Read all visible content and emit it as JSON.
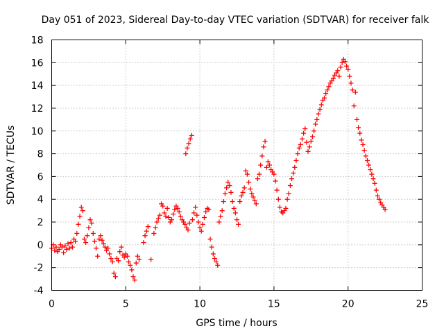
{
  "chart_data": {
    "type": "scatter",
    "title": "Day 051 of 2023, Sidereal Day-to-day VTEC variation (SDTVAR) for receiver falk",
    "xlabel": "GPS time / hours",
    "ylabel": "SDTVAR / TECUs",
    "xlim": [
      0,
      25
    ],
    "ylim": [
      -4,
      18
    ],
    "xticks": [
      0,
      5,
      10,
      15,
      20,
      25
    ],
    "yticks": [
      -4,
      -2,
      0,
      2,
      4,
      6,
      8,
      10,
      12,
      14,
      16,
      18
    ],
    "grid": true,
    "marker": "+",
    "color": "#ff0000",
    "series": [
      {
        "name": "SDTVAR",
        "points": [
          [
            0.0,
            -0.3
          ],
          [
            0.1,
            0.0
          ],
          [
            0.2,
            -0.5
          ],
          [
            0.3,
            -0.2
          ],
          [
            0.4,
            -0.6
          ],
          [
            0.5,
            -0.4
          ],
          [
            0.6,
            0.0
          ],
          [
            0.7,
            -0.2
          ],
          [
            0.8,
            -0.7
          ],
          [
            0.9,
            -0.1
          ],
          [
            1.0,
            -0.4
          ],
          [
            1.1,
            0.1
          ],
          [
            1.2,
            -0.3
          ],
          [
            1.3,
            0.2
          ],
          [
            1.4,
            -0.2
          ],
          [
            1.5,
            0.5
          ],
          [
            1.6,
            0.3
          ],
          [
            1.7,
            1.0
          ],
          [
            1.8,
            1.8
          ],
          [
            1.9,
            2.5
          ],
          [
            2.0,
            3.3
          ],
          [
            2.1,
            3.0
          ],
          [
            2.2,
            0.5
          ],
          [
            2.3,
            0.2
          ],
          [
            2.4,
            0.8
          ],
          [
            2.5,
            1.5
          ],
          [
            2.6,
            2.2
          ],
          [
            2.7,
            1.9
          ],
          [
            2.8,
            1.0
          ],
          [
            2.9,
            0.3
          ],
          [
            3.0,
            -0.3
          ],
          [
            3.1,
            -1.0
          ],
          [
            3.2,
            0.5
          ],
          [
            3.3,
            0.8
          ],
          [
            3.4,
            0.4
          ],
          [
            3.5,
            0.1
          ],
          [
            3.6,
            -0.2
          ],
          [
            3.7,
            -0.5
          ],
          [
            3.8,
            -0.3
          ],
          [
            3.9,
            -0.8
          ],
          [
            4.0,
            -1.2
          ],
          [
            4.1,
            -1.5
          ],
          [
            4.2,
            -2.5
          ],
          [
            4.3,
            -2.8
          ],
          [
            4.4,
            -1.2
          ],
          [
            4.5,
            -1.4
          ],
          [
            4.6,
            -0.6
          ],
          [
            4.7,
            -0.2
          ],
          [
            4.8,
            -0.9
          ],
          [
            4.9,
            -1.1
          ],
          [
            5.0,
            -0.8
          ],
          [
            5.1,
            -1.0
          ],
          [
            5.2,
            -1.5
          ],
          [
            5.3,
            -1.8
          ],
          [
            5.4,
            -2.2
          ],
          [
            5.5,
            -2.8
          ],
          [
            5.6,
            -3.1
          ],
          [
            5.7,
            -1.6
          ],
          [
            5.8,
            -1.0
          ],
          [
            5.9,
            -1.3
          ],
          [
            6.2,
            0.2
          ],
          [
            6.3,
            0.8
          ],
          [
            6.4,
            1.2
          ],
          [
            6.5,
            1.6
          ],
          [
            6.7,
            -1.3
          ],
          [
            6.9,
            1.0
          ],
          [
            7.0,
            1.5
          ],
          [
            7.1,
            2.0
          ],
          [
            7.2,
            2.3
          ],
          [
            7.3,
            2.6
          ],
          [
            7.4,
            3.6
          ],
          [
            7.5,
            3.4
          ],
          [
            7.6,
            2.8
          ],
          [
            7.7,
            2.5
          ],
          [
            7.8,
            3.2
          ],
          [
            7.9,
            2.4
          ],
          [
            8.0,
            2.0
          ],
          [
            8.1,
            2.2
          ],
          [
            8.2,
            2.7
          ],
          [
            8.3,
            3.1
          ],
          [
            8.4,
            3.4
          ],
          [
            8.5,
            3.2
          ],
          [
            8.6,
            2.9
          ],
          [
            8.7,
            2.5
          ],
          [
            8.8,
            2.2
          ],
          [
            8.9,
            2.0
          ],
          [
            9.0,
            1.8
          ],
          [
            9.1,
            1.5
          ],
          [
            9.2,
            1.3
          ],
          [
            9.3,
            1.9
          ],
          [
            9.05,
            8.0
          ],
          [
            9.15,
            8.5
          ],
          [
            9.25,
            8.9
          ],
          [
            9.35,
            9.3
          ],
          [
            9.45,
            9.6
          ],
          [
            9.5,
            2.2
          ],
          [
            9.6,
            2.8
          ],
          [
            9.7,
            3.3
          ],
          [
            9.8,
            2.6
          ],
          [
            9.9,
            2.0
          ],
          [
            10.0,
            1.5
          ],
          [
            10.1,
            1.2
          ],
          [
            10.2,
            1.8
          ],
          [
            10.3,
            2.4
          ],
          [
            10.4,
            2.9
          ],
          [
            10.5,
            3.2
          ],
          [
            10.6,
            3.1
          ],
          [
            10.7,
            0.5
          ],
          [
            10.8,
            -0.2
          ],
          [
            10.9,
            -0.8
          ],
          [
            11.0,
            -1.2
          ],
          [
            11.1,
            -1.5
          ],
          [
            11.2,
            -1.8
          ],
          [
            11.3,
            2.0
          ],
          [
            11.4,
            2.5
          ],
          [
            11.5,
            3.0
          ],
          [
            11.6,
            3.8
          ],
          [
            11.7,
            4.5
          ],
          [
            11.8,
            5.0
          ],
          [
            11.9,
            5.5
          ],
          [
            12.0,
            5.2
          ],
          [
            12.1,
            4.6
          ],
          [
            12.2,
            3.8
          ],
          [
            12.3,
            3.2
          ],
          [
            12.4,
            2.8
          ],
          [
            12.5,
            2.2
          ],
          [
            12.6,
            1.8
          ],
          [
            12.7,
            3.8
          ],
          [
            12.8,
            4.3
          ],
          [
            12.9,
            4.6
          ],
          [
            13.0,
            5.0
          ],
          [
            13.1,
            6.5
          ],
          [
            13.2,
            6.2
          ],
          [
            13.3,
            5.5
          ],
          [
            13.4,
            4.9
          ],
          [
            13.5,
            4.5
          ],
          [
            13.6,
            4.2
          ],
          [
            13.7,
            3.9
          ],
          [
            13.8,
            3.6
          ],
          [
            13.9,
            5.8
          ],
          [
            14.0,
            6.2
          ],
          [
            14.1,
            7.0
          ],
          [
            14.2,
            7.8
          ],
          [
            14.3,
            8.6
          ],
          [
            14.4,
            9.1
          ],
          [
            14.5,
            6.8
          ],
          [
            14.6,
            7.3
          ],
          [
            14.7,
            7.0
          ],
          [
            14.8,
            6.6
          ],
          [
            14.9,
            6.4
          ],
          [
            15.0,
            6.2
          ],
          [
            15.1,
            5.6
          ],
          [
            15.2,
            4.8
          ],
          [
            15.3,
            4.0
          ],
          [
            15.4,
            3.3
          ],
          [
            15.5,
            2.9
          ],
          [
            15.6,
            2.8
          ],
          [
            15.7,
            3.0
          ],
          [
            15.8,
            3.2
          ],
          [
            15.9,
            4.0
          ],
          [
            16.0,
            4.5
          ],
          [
            16.1,
            5.2
          ],
          [
            16.2,
            5.8
          ],
          [
            16.3,
            6.3
          ],
          [
            16.4,
            6.8
          ],
          [
            16.5,
            7.4
          ],
          [
            16.6,
            8.0
          ],
          [
            16.7,
            8.5
          ],
          [
            16.8,
            8.8
          ],
          [
            16.9,
            9.3
          ],
          [
            17.0,
            9.8
          ],
          [
            17.1,
            10.2
          ],
          [
            17.2,
            9.0
          ],
          [
            17.3,
            8.2
          ],
          [
            17.4,
            8.6
          ],
          [
            17.5,
            9.1
          ],
          [
            17.6,
            9.5
          ],
          [
            17.7,
            10.0
          ],
          [
            17.8,
            10.6
          ],
          [
            17.9,
            11.0
          ],
          [
            18.0,
            11.5
          ],
          [
            18.1,
            11.9
          ],
          [
            18.2,
            12.3
          ],
          [
            18.3,
            12.7
          ],
          [
            18.4,
            12.9
          ],
          [
            18.5,
            13.3
          ],
          [
            18.6,
            13.6
          ],
          [
            18.7,
            13.9
          ],
          [
            18.8,
            14.2
          ],
          [
            18.9,
            14.4
          ],
          [
            19.0,
            14.6
          ],
          [
            19.1,
            14.9
          ],
          [
            19.2,
            15.1
          ],
          [
            19.3,
            15.3
          ],
          [
            19.4,
            14.8
          ],
          [
            19.5,
            15.6
          ],
          [
            19.6,
            16.0
          ],
          [
            19.7,
            16.3
          ],
          [
            19.8,
            16.1
          ],
          [
            19.9,
            15.7
          ],
          [
            20.0,
            15.4
          ],
          [
            20.1,
            14.8
          ],
          [
            20.2,
            14.2
          ],
          [
            20.3,
            13.6
          ],
          [
            20.4,
            12.2
          ],
          [
            20.5,
            13.4
          ],
          [
            20.6,
            11.0
          ],
          [
            20.7,
            10.3
          ],
          [
            20.8,
            9.8
          ],
          [
            20.9,
            9.2
          ],
          [
            21.0,
            8.8
          ],
          [
            21.1,
            8.3
          ],
          [
            21.2,
            7.8
          ],
          [
            21.3,
            7.4
          ],
          [
            21.4,
            7.0
          ],
          [
            21.5,
            6.6
          ],
          [
            21.6,
            6.2
          ],
          [
            21.7,
            5.8
          ],
          [
            21.8,
            5.4
          ],
          [
            21.9,
            4.8
          ],
          [
            22.0,
            4.3
          ],
          [
            22.1,
            4.0
          ],
          [
            22.2,
            3.7
          ],
          [
            22.3,
            3.5
          ],
          [
            22.4,
            3.3
          ],
          [
            22.5,
            3.1
          ]
        ]
      }
    ]
  }
}
